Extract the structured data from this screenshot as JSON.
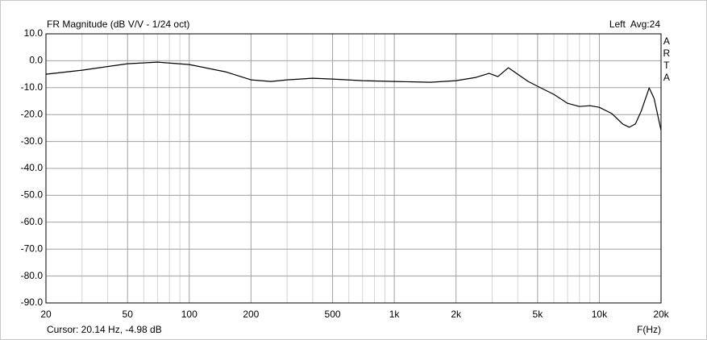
{
  "chart_data": {
    "type": "line",
    "title": "FR Magnitude (dB V/V - 1/24 oct)",
    "channel_label": "Left  Avg:24",
    "brand": "ARTA",
    "cursor_label": "Cursor: 20.14 Hz, -4.98 dB",
    "x_label": "F(Hz)",
    "log_x": true,
    "grid": true,
    "x": [
      20,
      30,
      50,
      70,
      100,
      150,
      200,
      250,
      300,
      400,
      500,
      700,
      1000,
      1500,
      2000,
      2500,
      2900,
      3200,
      3600,
      4000,
      4500,
      5000,
      6000,
      7000,
      8000,
      9000,
      10000,
      11500,
      13000,
      14000,
      15000,
      16000,
      17500,
      18500,
      20000
    ],
    "series": [
      {
        "name": "Left",
        "color": "#000000",
        "values": [
          -5.0,
          -3.5,
          -1.1,
          -0.5,
          -1.4,
          -4.1,
          -7.1,
          -7.7,
          -7.1,
          -6.5,
          -6.8,
          -7.4,
          -7.7,
          -8.0,
          -7.4,
          -6.2,
          -4.7,
          -5.9,
          -2.6,
          -5.0,
          -7.7,
          -9.5,
          -12.5,
          -15.8,
          -17.0,
          -16.7,
          -17.3,
          -19.6,
          -23.5,
          -24.7,
          -23.5,
          -18.7,
          -10.1,
          -14.0,
          -25.9
        ]
      }
    ],
    "xlim": [
      20,
      20000
    ],
    "ylim": [
      -90,
      10
    ],
    "xticks": [
      20,
      50,
      100,
      200,
      500,
      {
        "value": 1000,
        "label": "1k"
      },
      {
        "value": 2000,
        "label": "2k"
      },
      {
        "value": 5000,
        "label": "5k"
      },
      {
        "value": 10000,
        "label": "10k"
      },
      {
        "value": 20000,
        "label": "20k"
      }
    ],
    "xgrid_minor": [
      30,
      40,
      60,
      70,
      80,
      90,
      300,
      400,
      600,
      700,
      800,
      900,
      3000,
      4000,
      6000,
      7000,
      8000,
      9000
    ],
    "yticks": [
      {
        "value": 10,
        "label": "10.0"
      },
      {
        "value": 0,
        "label": "0.0"
      },
      {
        "value": -10,
        "label": "-10.0"
      },
      {
        "value": -20,
        "label": "-20.0"
      },
      {
        "value": -30,
        "label": "-30.0"
      },
      {
        "value": -40,
        "label": "-40.0"
      },
      {
        "value": -50,
        "label": "-50.0"
      },
      {
        "value": -60,
        "label": "-60.0"
      },
      {
        "value": -70,
        "label": "-70.0"
      },
      {
        "value": -80,
        "label": "-80.0"
      },
      {
        "value": -90,
        "label": "-90.0"
      }
    ]
  }
}
